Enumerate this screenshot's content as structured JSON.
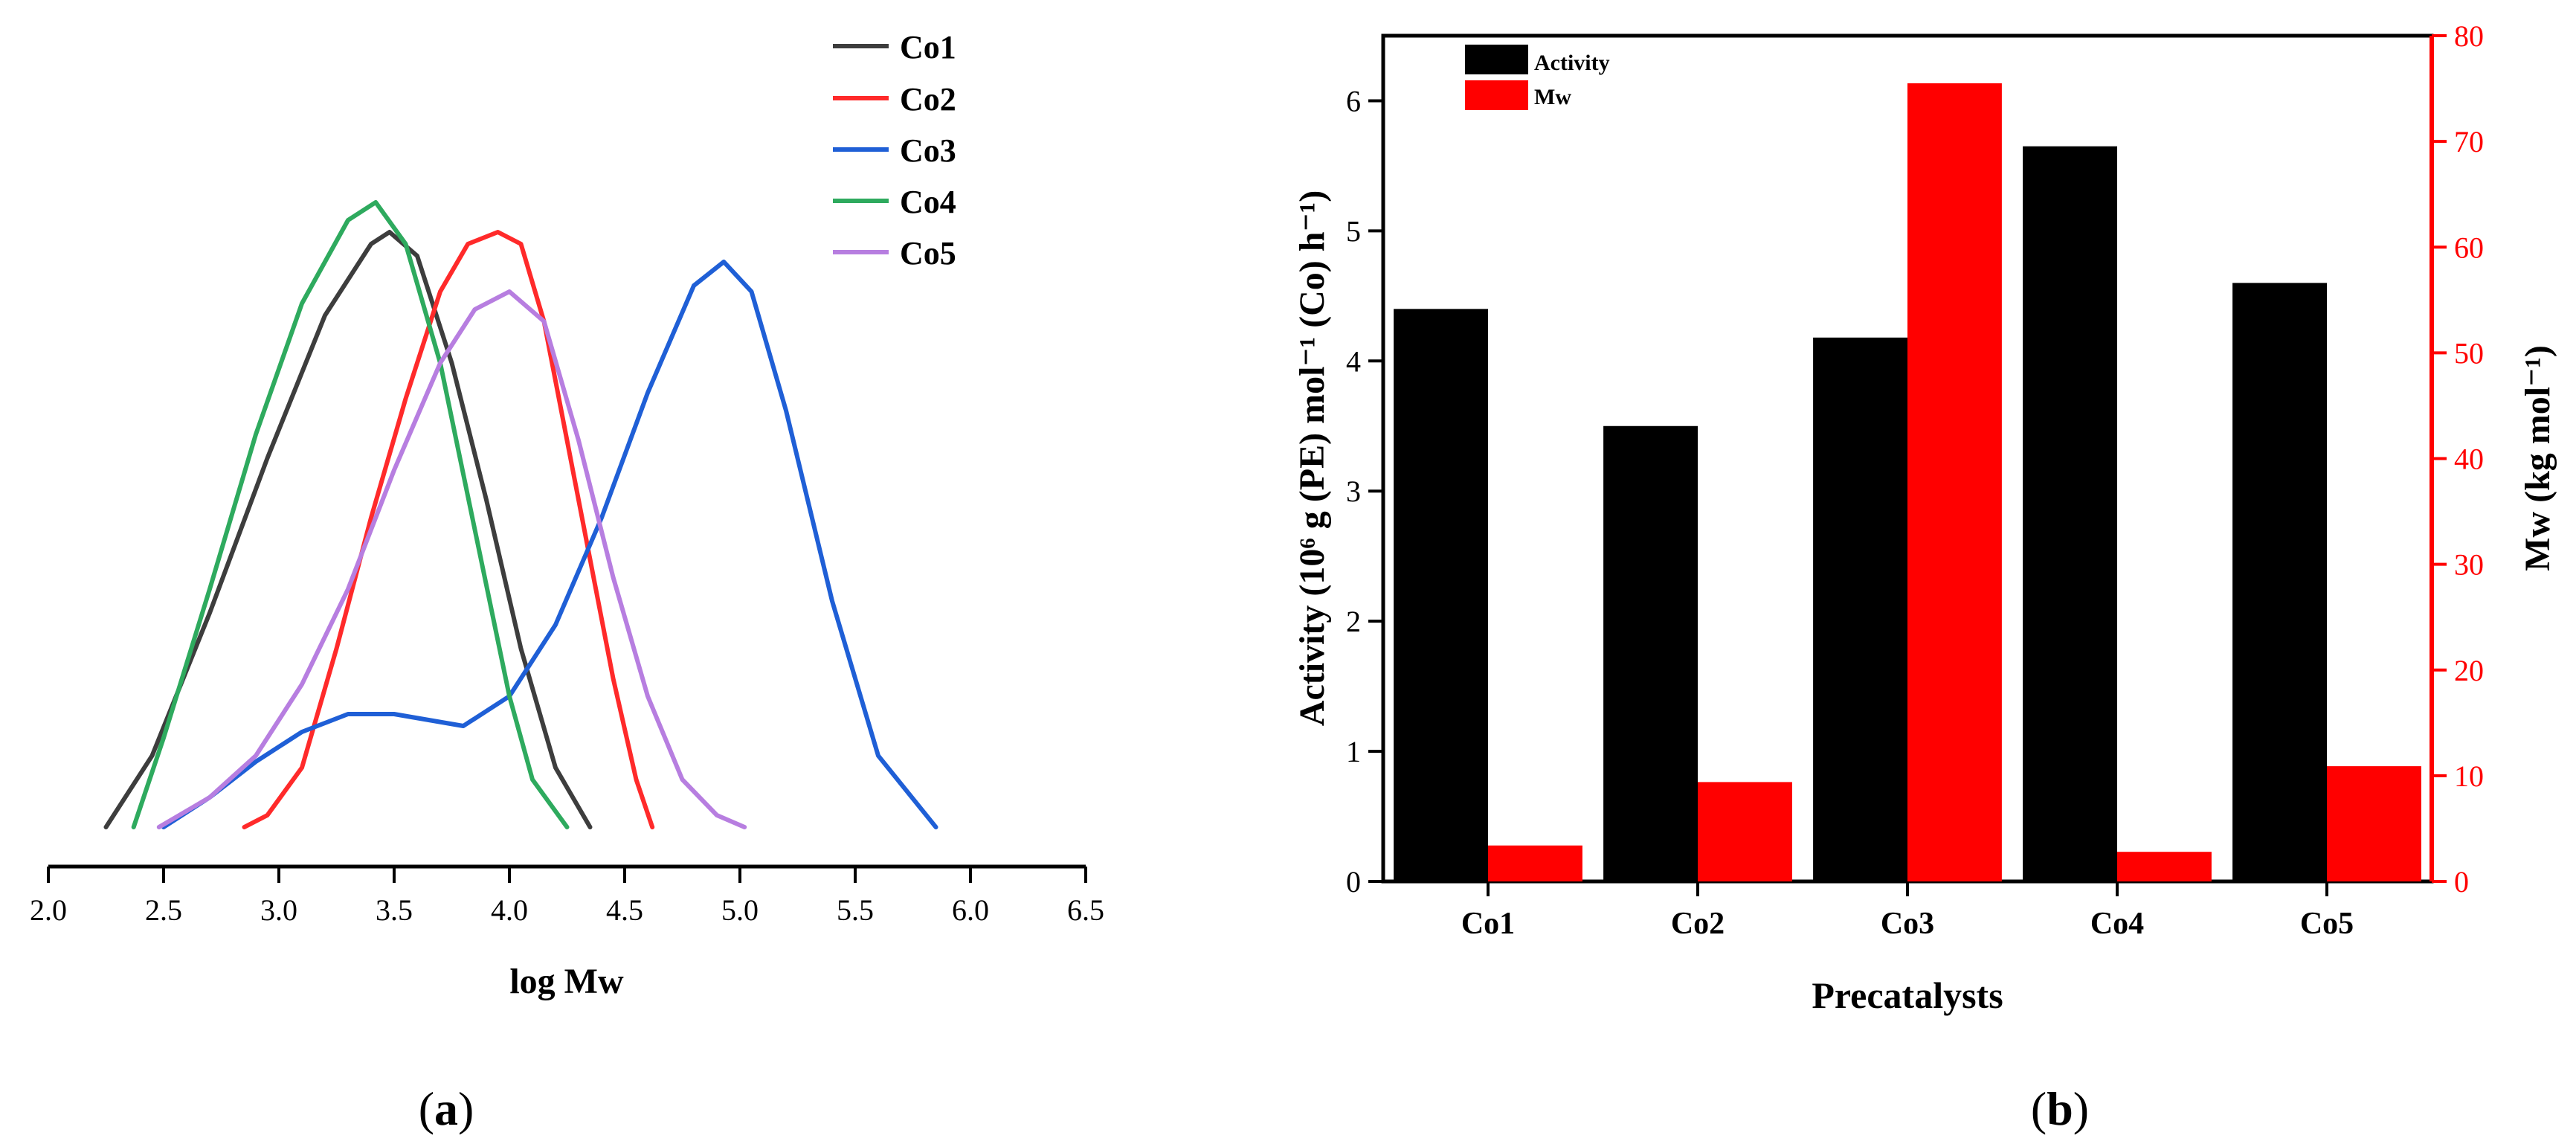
{
  "chart_data": [
    {
      "type": "line",
      "panel_label": "(a)",
      "panel_letter": "a",
      "xlabel": "log Mw",
      "ylabel": "",
      "xlim": [
        2.0,
        6.5
      ],
      "xticks": [
        "2.0",
        "2.5",
        "3.0",
        "3.5",
        "4.0",
        "4.5",
        "5.0",
        "5.5",
        "6.0",
        "6.5"
      ],
      "y_axis_visible": false,
      "legend_position": "top-right",
      "series": [
        {
          "name": "Co1",
          "color": "#3d3d3d",
          "x": [
            2.25,
            2.45,
            2.7,
            2.95,
            3.2,
            3.4,
            3.48,
            3.6,
            3.75,
            3.9,
            4.05,
            4.2,
            4.35
          ],
          "y": [
            0.0,
            0.12,
            0.36,
            0.62,
            0.86,
            0.98,
            1.0,
            0.96,
            0.78,
            0.55,
            0.3,
            0.1,
            0.0
          ]
        },
        {
          "name": "Co2",
          "color": "#ff2a2a",
          "x": [
            2.85,
            2.95,
            3.1,
            3.25,
            3.4,
            3.55,
            3.7,
            3.82,
            3.95,
            4.05,
            4.15,
            4.25,
            4.35,
            4.45,
            4.55,
            4.62
          ],
          "y": [
            0.0,
            0.02,
            0.1,
            0.3,
            0.52,
            0.72,
            0.9,
            0.98,
            1.0,
            0.98,
            0.85,
            0.65,
            0.45,
            0.25,
            0.08,
            0.0
          ]
        },
        {
          "name": "Co3",
          "color": "#1f5fd6",
          "x": [
            2.5,
            2.7,
            2.9,
            3.1,
            3.3,
            3.5,
            3.65,
            3.8,
            4.0,
            4.2,
            4.4,
            4.6,
            4.8,
            4.93,
            5.05,
            5.2,
            5.4,
            5.6,
            5.85
          ],
          "y": [
            0.0,
            0.05,
            0.11,
            0.16,
            0.19,
            0.19,
            0.18,
            0.17,
            0.22,
            0.34,
            0.52,
            0.73,
            0.91,
            0.95,
            0.9,
            0.7,
            0.38,
            0.12,
            0.0
          ]
        },
        {
          "name": "Co4",
          "color": "#2eaa5e",
          "x": [
            2.37,
            2.5,
            2.7,
            2.9,
            3.1,
            3.3,
            3.42,
            3.55,
            3.7,
            3.85,
            4.0,
            4.1,
            4.25
          ],
          "y": [
            0.0,
            0.15,
            0.4,
            0.66,
            0.88,
            1.02,
            1.05,
            0.98,
            0.78,
            0.5,
            0.22,
            0.08,
            0.0
          ]
        },
        {
          "name": "Co5",
          "color": "#b77ee0",
          "x": [
            2.48,
            2.7,
            2.9,
            3.1,
            3.3,
            3.5,
            3.7,
            3.85,
            4.0,
            4.15,
            4.3,
            4.45,
            4.6,
            4.75,
            4.9,
            5.02
          ],
          "y": [
            0.0,
            0.05,
            0.12,
            0.24,
            0.4,
            0.6,
            0.78,
            0.87,
            0.9,
            0.85,
            0.65,
            0.42,
            0.22,
            0.08,
            0.02,
            0.0
          ]
        }
      ]
    },
    {
      "type": "bar",
      "panel_label": "(b)",
      "panel_letter": "b",
      "title": "",
      "categories": [
        "Co1",
        "Co2",
        "Co3",
        "Co4",
        "Co5"
      ],
      "xlabel": "Precatalysts",
      "ylabel": "Activity (10⁶ g (PE) mol⁻¹ (Co) h⁻¹)",
      "y2label": "Mw (kg mol⁻¹)",
      "ylim": [
        0,
        6.5
      ],
      "yticks": [
        "0",
        "1",
        "2",
        "3",
        "4",
        "5",
        "6"
      ],
      "y2lim": [
        0,
        80
      ],
      "y2ticks": [
        "0",
        "10",
        "20",
        "30",
        "40",
        "50",
        "60",
        "70",
        "80"
      ],
      "legend_position": "top-left",
      "series": [
        {
          "name": "Activity",
          "axis": "left",
          "color": "#000000",
          "values": [
            4.4,
            3.5,
            4.18,
            5.65,
            4.6
          ]
        },
        {
          "name": "Mw",
          "axis": "right",
          "color": "#ff0000",
          "values": [
            3.4,
            9.4,
            75.5,
            2.8,
            10.9
          ]
        }
      ]
    }
  ]
}
